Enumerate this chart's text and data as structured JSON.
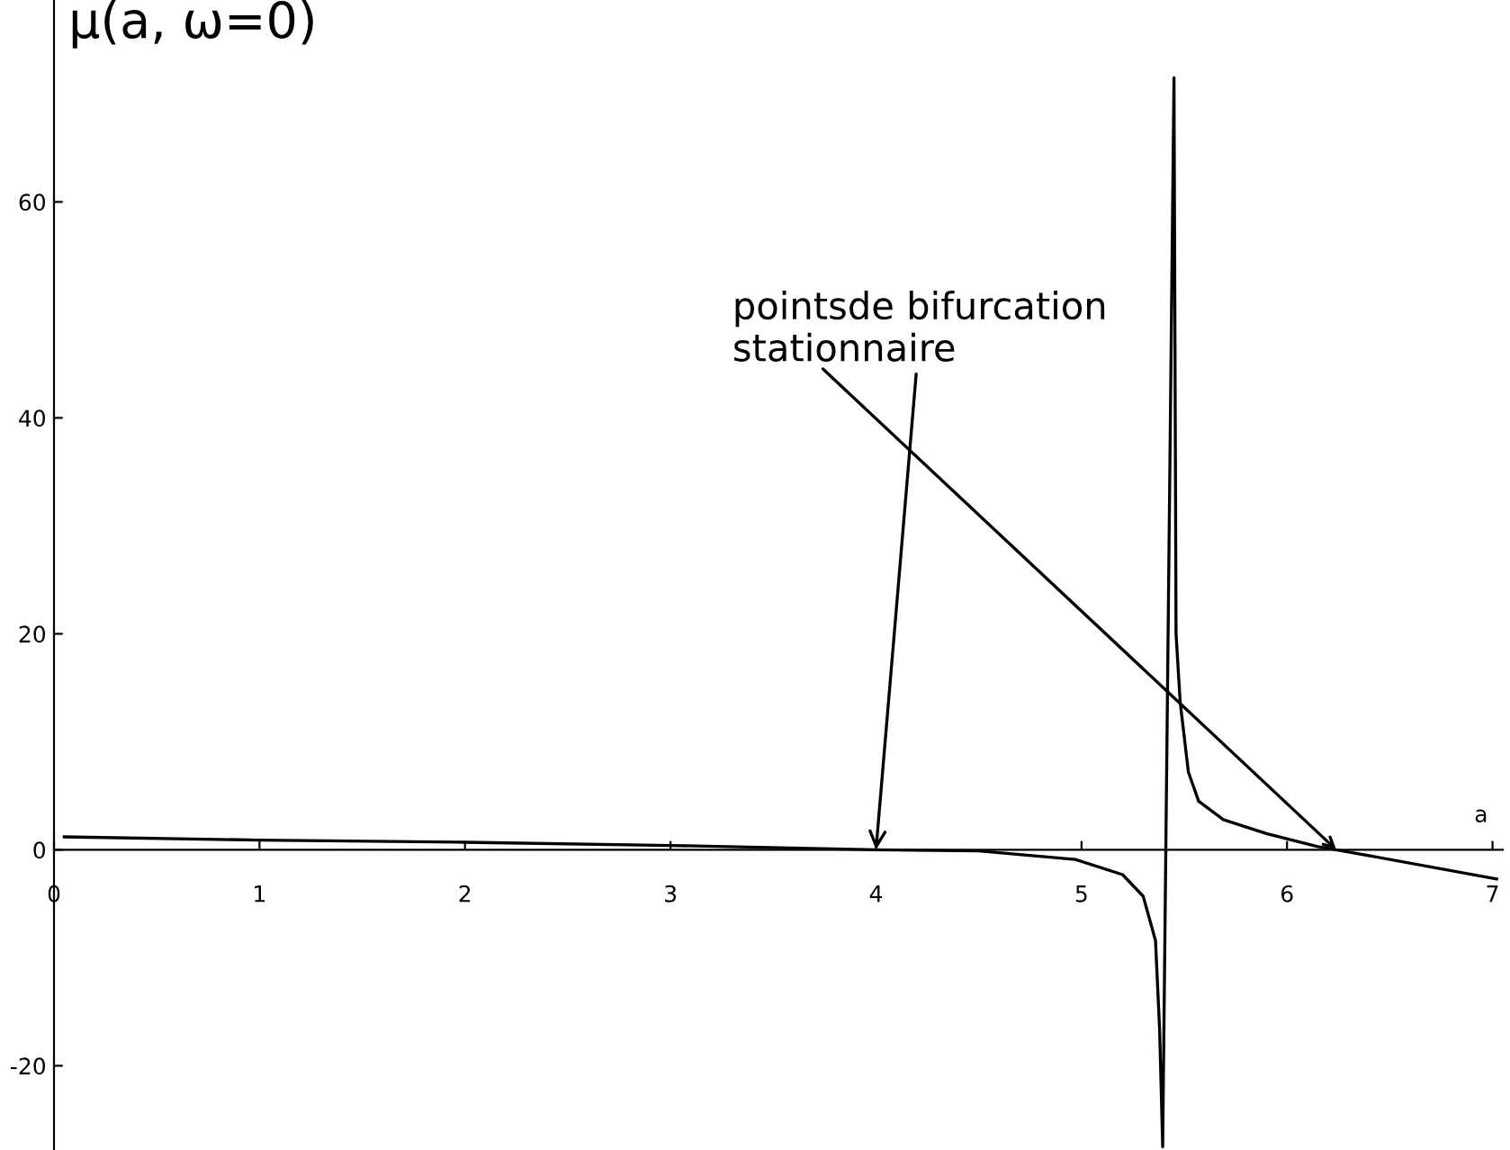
{
  "chart_data": {
    "type": "line",
    "xlabel": "a",
    "ylabel": "μ(a, ω=0)",
    "x": [
      0.05,
      1,
      2,
      3,
      4,
      4.5,
      4.97,
      5.2,
      5.3,
      5.36,
      5.38,
      5.395,
      5.45,
      5.46,
      5.48,
      5.52,
      5.57,
      5.69,
      5.9,
      6.15,
      6.3,
      7.02
    ],
    "series": [
      {
        "color": "#000000",
        "values": [
          1.2,
          0.9,
          0.7,
          0.4,
          0,
          -0.1,
          -0.9,
          -2.3,
          -4.3,
          -8.4,
          -16.6,
          -27.5,
          71.5,
          20,
          13.7,
          7.2,
          4.5,
          2.8,
          1.5,
          0.3,
          -0.2,
          -2.7
        ]
      }
    ],
    "xlim": [
      0,
      7.05
    ],
    "ylim": [
      -27.8,
      78.7
    ],
    "xticks": [
      0,
      1,
      2,
      3,
      4,
      5,
      6,
      7
    ],
    "yticks": [
      -20,
      0,
      20,
      40,
      60
    ],
    "annotations": [
      {
        "text": "pointsde bifurcation\nstationnaire",
        "x": 4,
        "y": 0
      }
    ],
    "grid": false,
    "legend": false,
    "marker": "none",
    "line_style": "solid"
  }
}
